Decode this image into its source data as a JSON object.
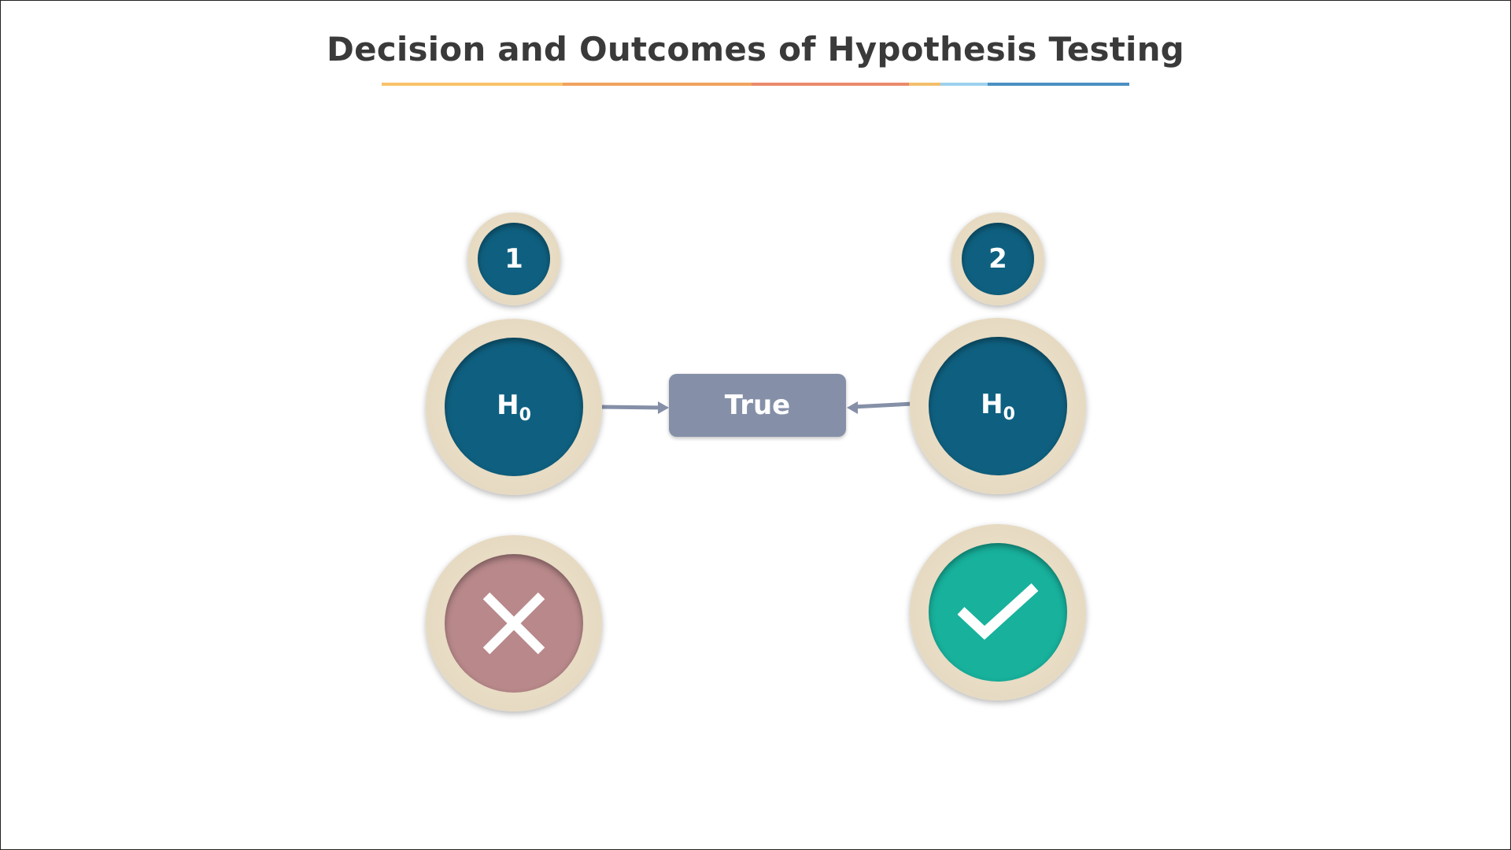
{
  "title": "Decision and Outcomes of Hypothesis Testing",
  "colors": {
    "title_text": "#3a3a3a",
    "rule": [
      "#f8c36a",
      "#f1a35f",
      "#ec8a6c",
      "#f1a35f",
      "#f3bf6c",
      "#9dd1ee",
      "#4a90c2"
    ],
    "hypothesis_disc": "#0f6080",
    "ring": "#e6dac2",
    "true_box": "#8590a8",
    "arrow": "#8590a8",
    "reject": "#b8888a",
    "accept": "#17b19c"
  },
  "left": {
    "badge": "1",
    "hypothesis": "H",
    "hypothesis_sub": "0",
    "outcome_icon": "x-icon"
  },
  "right": {
    "badge": "2",
    "hypothesis": "H",
    "hypothesis_sub": "0",
    "outcome_icon": "check-icon"
  },
  "center": {
    "label": "True"
  }
}
